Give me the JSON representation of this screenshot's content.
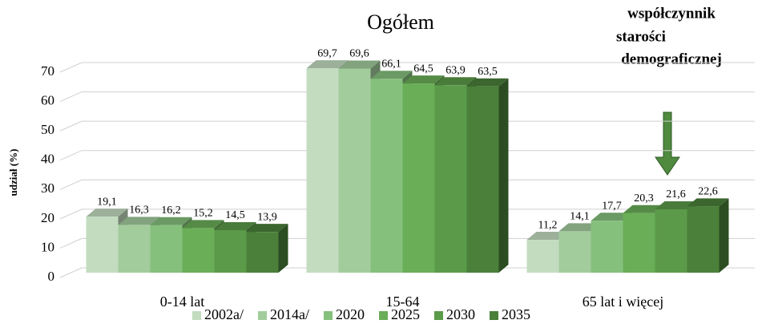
{
  "chart_data": {
    "type": "bar3d",
    "title": "Ogółem",
    "y_label": "udział (%)",
    "annotation": [
      "współczynnik",
      "starości",
      "demograficznej"
    ],
    "categories": [
      "0-14 lat",
      "15-64",
      "65 lat i więcej"
    ],
    "series": [
      {
        "name": "2002a/",
        "color": "#c3dcc0",
        "values": [
          19.1,
          69.7,
          11.2
        ],
        "value_labels": [
          "19,1",
          "69,7",
          "11,2"
        ]
      },
      {
        "name": "2014a/",
        "color": "#a3cc9d",
        "values": [
          16.3,
          69.6,
          14.1
        ],
        "value_labels": [
          "16,3",
          "69,6",
          "14,1"
        ]
      },
      {
        "name": "2020",
        "color": "#86c07d",
        "values": [
          16.2,
          66.1,
          17.7
        ],
        "value_labels": [
          "16,2",
          "66,1",
          "17,7"
        ]
      },
      {
        "name": "2025",
        "color": "#6aae57",
        "values": [
          15.2,
          64.5,
          20.3
        ],
        "value_labels": [
          "15,2",
          "64,5",
          "20,3"
        ]
      },
      {
        "name": "2030",
        "color": "#5b9a49",
        "values": [
          14.5,
          63.9,
          21.6
        ],
        "value_labels": [
          "14,5",
          "63,9",
          "21,6"
        ]
      },
      {
        "name": "2035",
        "color": "#4a8039",
        "values": [
          13.9,
          63.5,
          22.6
        ],
        "value_labels": [
          "13,9",
          "63,5",
          "22,6"
        ]
      }
    ],
    "ylim": [
      0,
      70
    ],
    "yticks": [
      0,
      10,
      20,
      30,
      40,
      50,
      60,
      70
    ],
    "grid": true
  }
}
